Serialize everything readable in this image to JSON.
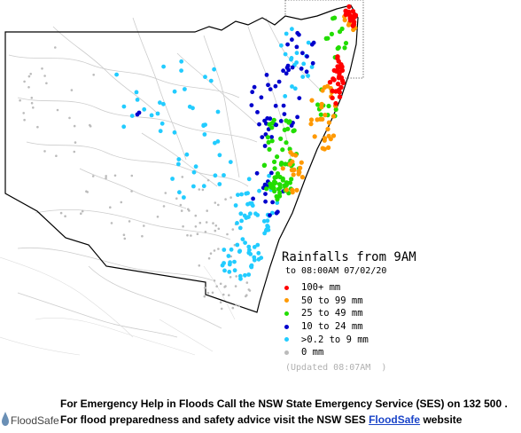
{
  "legend": {
    "title": "Rainfalls from 9AM",
    "subtitle": "to 08:00AM 07/02/20",
    "updated": "(Updated 08:07AM  )",
    "classes": [
      {
        "label": "100+ mm",
        "color": "#ff0000"
      },
      {
        "label": "50  to 99 mm",
        "color": "#ff9900"
      },
      {
        "label": "25  to 49 mm",
        "color": "#22dd00"
      },
      {
        "label": "10  to 24 mm",
        "color": "#0000cc"
      },
      {
        "label": ">0.2 to 9 mm",
        "color": "#22ccff"
      },
      {
        "label": "0 mm",
        "color": "#bbbbbb"
      }
    ]
  },
  "footer": {
    "logo_text": "FloodSafe",
    "line1": "For Emergency Help in Floods Call the NSW State Emergency Service (SES) on 132 500 .",
    "line2_prefix": "For flood preparedness and safety advice visit the NSW SES ",
    "line2_link": "FloodSafe",
    "line2_suffix": " website"
  },
  "colors": {
    "border": "#000000",
    "river": "#c8c8c8",
    "catchment": "#d8d8d8"
  }
}
